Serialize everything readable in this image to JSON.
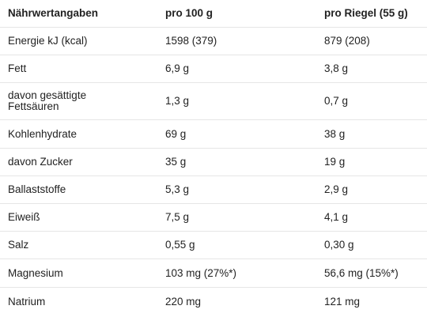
{
  "table": {
    "headers": [
      "Nährwertangaben",
      "pro 100 g",
      "pro Riegel (55 g)"
    ],
    "rows": [
      [
        "Energie kJ (kcal)",
        "1598 (379)",
        "879 (208)"
      ],
      [
        "Fett",
        "6,9 g",
        "3,8 g"
      ],
      [
        "davon gesättigte Fettsäuren",
        "1,3 g",
        "0,7 g"
      ],
      [
        "Kohlenhydrate",
        "69 g",
        "38 g"
      ],
      [
        "davon Zucker",
        "35 g",
        "19 g"
      ],
      [
        "Ballaststoffe",
        "5,3 g",
        "2,9 g"
      ],
      [
        "Eiweiß",
        "7,5 g",
        "4,1 g"
      ],
      [
        "Salz",
        "0,55 g",
        "0,30 g"
      ],
      [
        "Magnesium",
        "103 mg (27%*)",
        "56,6 mg (15%*)"
      ],
      [
        "Natrium",
        "220 mg",
        "121 mg"
      ]
    ]
  }
}
